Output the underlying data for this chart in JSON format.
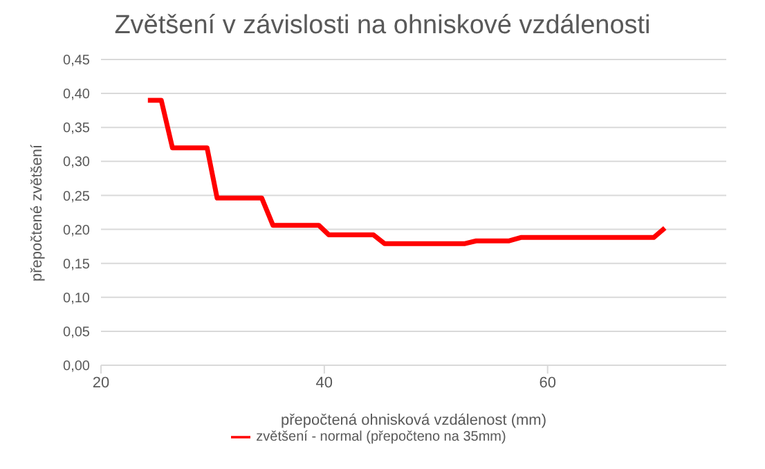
{
  "chart_data": {
    "type": "line",
    "title": "Zvětšení v závislosti na ohniskové vzdálenosti",
    "xlabel": "přepočtená ohnisková vzdálenost (mm)",
    "ylabel": "přepočtené zvětšení",
    "series": [
      {
        "name": "zvětšení - normal (přepočteno na 35mm)",
        "color": "#ff0000",
        "x": [
          24.2,
          25.4,
          26.4,
          29.5,
          30.4,
          34.4,
          35.4,
          39.5,
          40.4,
          44.4,
          45.4,
          52.6,
          53.6,
          56.5,
          57.6,
          69.5,
          70.5
        ],
        "values": [
          0.39,
          0.39,
          0.32,
          0.32,
          0.246,
          0.246,
          0.206,
          0.206,
          0.192,
          0.192,
          0.179,
          0.179,
          0.183,
          0.183,
          0.188,
          0.188,
          0.202
        ]
      }
    ],
    "xlim": [
      20,
      76
    ],
    "xticks": [
      20,
      40,
      60
    ],
    "ylim": [
      0,
      0.45
    ],
    "yticks": [
      {
        "value": 0,
        "label": "0,00"
      },
      {
        "value": 0.05,
        "label": "0,05"
      },
      {
        "value": 0.1,
        "label": "0,10"
      },
      {
        "value": 0.15,
        "label": "0,15"
      },
      {
        "value": 0.2,
        "label": "0,20"
      },
      {
        "value": 0.25,
        "label": "0,25"
      },
      {
        "value": 0.3,
        "label": "0,30"
      },
      {
        "value": 0.35,
        "label": "0,35"
      },
      {
        "value": 0.4,
        "label": "0,40"
      },
      {
        "value": 0.45,
        "label": "0,45"
      }
    ],
    "grid": "y",
    "legend": "bottom",
    "marker": "none",
    "line_style": "solid"
  }
}
